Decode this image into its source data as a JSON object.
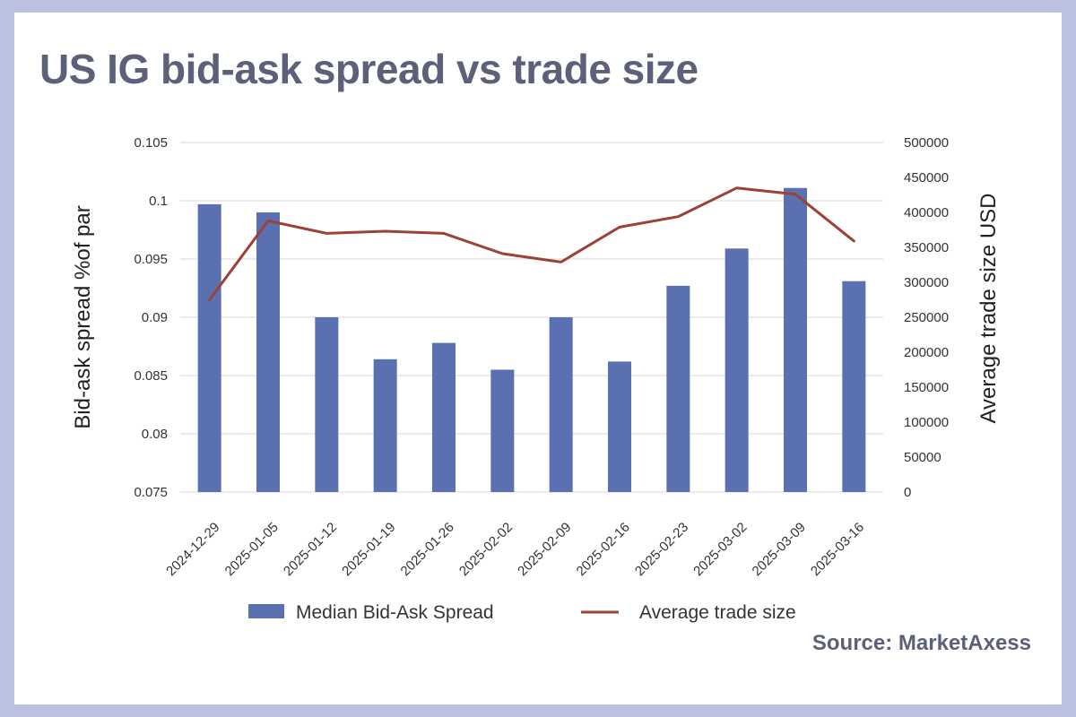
{
  "title": "US IG bid-ask spread vs trade size",
  "source": "Source: MarketAxess",
  "colors": {
    "bar": "#5b70b0",
    "line": "#9b4236",
    "grid": "#d9d9d9",
    "frame": "#bcc3e2",
    "title": "#5c6079"
  },
  "chart_data": {
    "type": "bar",
    "categories": [
      "2024-12-29",
      "2025-01-05",
      "2025-01-12",
      "2025-01-19",
      "2025-01-26",
      "2025-02-02",
      "2025-02-09",
      "2025-02-16",
      "2025-02-23",
      "2025-03-02",
      "2025-03-09",
      "2025-03-16"
    ],
    "series": [
      {
        "name": "Median Bid-Ask Spread",
        "type": "bar",
        "axis": "left",
        "values": [
          0.0997,
          0.099,
          0.09,
          0.0864,
          0.0878,
          0.0855,
          0.09,
          0.0862,
          0.0927,
          0.0959,
          0.1011,
          0.0931
        ]
      },
      {
        "name": "Average trade size",
        "type": "line",
        "axis": "right",
        "values": [
          275000,
          388000,
          370000,
          373000,
          370000,
          341000,
          329000,
          379000,
          394000,
          435000,
          426000,
          359000
        ]
      }
    ],
    "ylabel": "Bid-ask spread %of par",
    "y2label": "Average trade size USD",
    "ylim": [
      0.075,
      0.105
    ],
    "y2lim": [
      0,
      500000
    ],
    "yticks": [
      "0.075",
      "0.08",
      "0.085",
      "0.09",
      "0.095",
      "0.1",
      "0.105"
    ],
    "y2ticks": [
      "0",
      "50000",
      "100000",
      "150000",
      "200000",
      "250000",
      "300000",
      "350000",
      "400000",
      "450000",
      "500000"
    ],
    "grid": true,
    "legend_position": "bottom"
  }
}
